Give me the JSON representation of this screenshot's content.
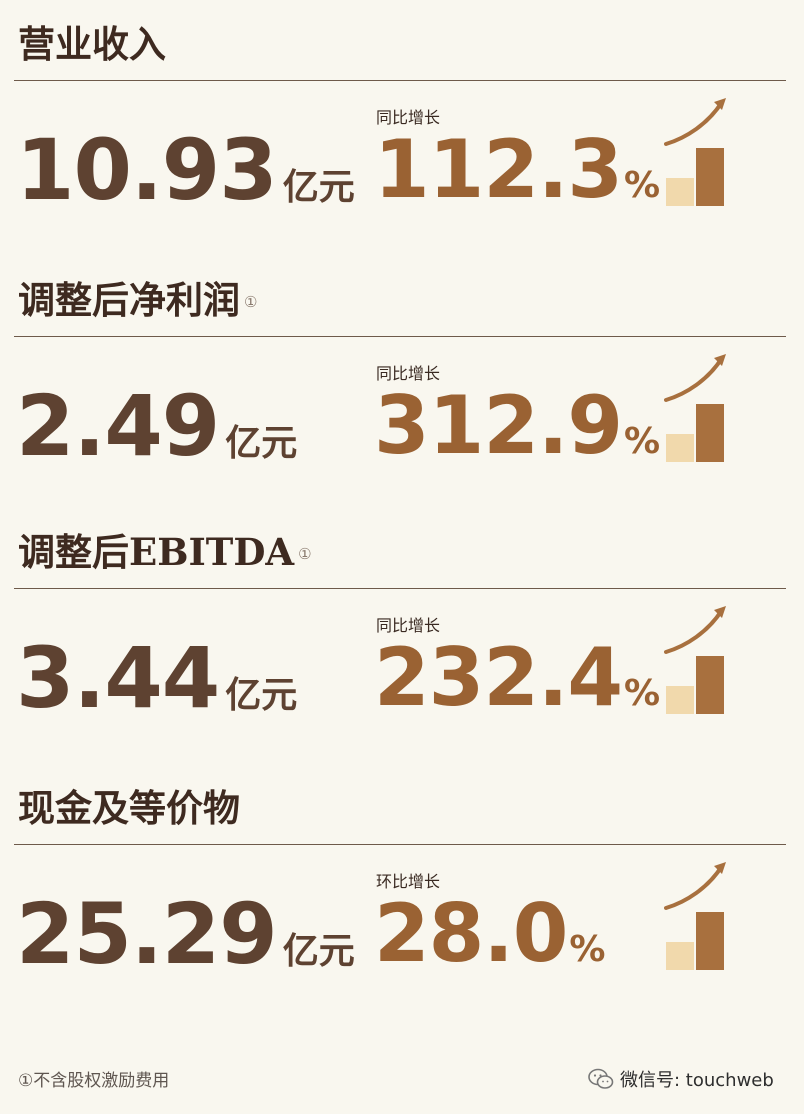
{
  "sections": [
    {
      "title": "营业收入",
      "footnote_marker": "",
      "value": "10.93",
      "unit": "亿元",
      "growth_label": "同比增长",
      "growth_value": "112.3",
      "growth_unit": "%"
    },
    {
      "title": "调整后净利润",
      "footnote_marker": "①",
      "value": "2.49",
      "unit": "亿元",
      "growth_label": "同比增长",
      "growth_value": "312.9",
      "growth_unit": "%"
    },
    {
      "title": "调整后EBITDA",
      "footnote_marker": "①",
      "value": "3.44",
      "unit": "亿元",
      "growth_label": "同比增长",
      "growth_value": "232.4",
      "growth_unit": "%"
    },
    {
      "title": "现金及等价物",
      "footnote_marker": "",
      "value": "25.29",
      "unit": "亿元",
      "growth_label": "环比增长",
      "growth_value": "28.0",
      "growth_unit": "%"
    }
  ],
  "footnote": "①不含股权激励费用",
  "watermark": "微信号: touchweb",
  "icons": {
    "growth": "growth-bar-chart-icon",
    "watermark": "wechat-icon"
  },
  "colors": {
    "background": "#f9f7ef",
    "value_text": "#5e4231",
    "growth_text": "#9a6233",
    "bar_light": "#f1d9ac",
    "bar_dark": "#a8703e"
  }
}
